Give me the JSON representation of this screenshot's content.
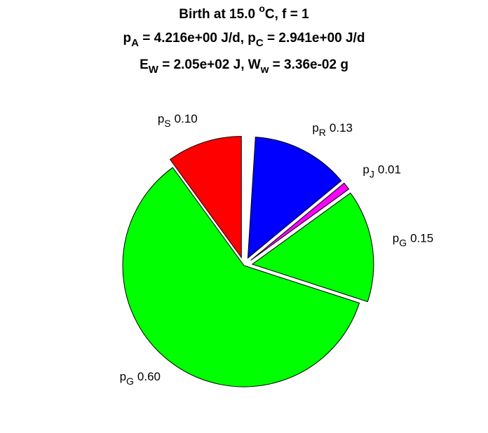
{
  "chart_data": {
    "type": "pie",
    "title": [
      [
        {
          "text": "Birth at 15.0 "
        },
        {
          "text": "o",
          "script": "sup"
        },
        {
          "text": "C, f = 1"
        }
      ],
      [
        {
          "text": "p"
        },
        {
          "text": "A",
          "script": "sub"
        },
        {
          "text": " = 4.216e+00 J/d, p"
        },
        {
          "text": "C",
          "script": "sub"
        },
        {
          "text": " = 2.941e+00 J/d"
        }
      ],
      [
        {
          "text": "E"
        },
        {
          "text": "W",
          "script": "sub"
        },
        {
          "text": " = 2.05e+02 J, W"
        },
        {
          "text": "w",
          "script": "sub"
        },
        {
          "text": " = 3.36e-02 g"
        }
      ]
    ],
    "categories": [
      "p",
      "p",
      "p",
      "p",
      "p"
    ],
    "category_subscripts": [
      "S",
      "G",
      "G",
      "J",
      "R"
    ],
    "values": [
      0.1,
      0.6,
      0.15,
      0.01,
      0.13
    ],
    "value_labels": [
      "0.10",
      "0.60",
      "0.15",
      "0.01",
      "0.13"
    ],
    "colors": [
      "#ff0000",
      "#00ff00",
      "#00ff00",
      "#ff00ff",
      "#0000ff"
    ],
    "explode": [
      true,
      false,
      true,
      true,
      true
    ]
  }
}
